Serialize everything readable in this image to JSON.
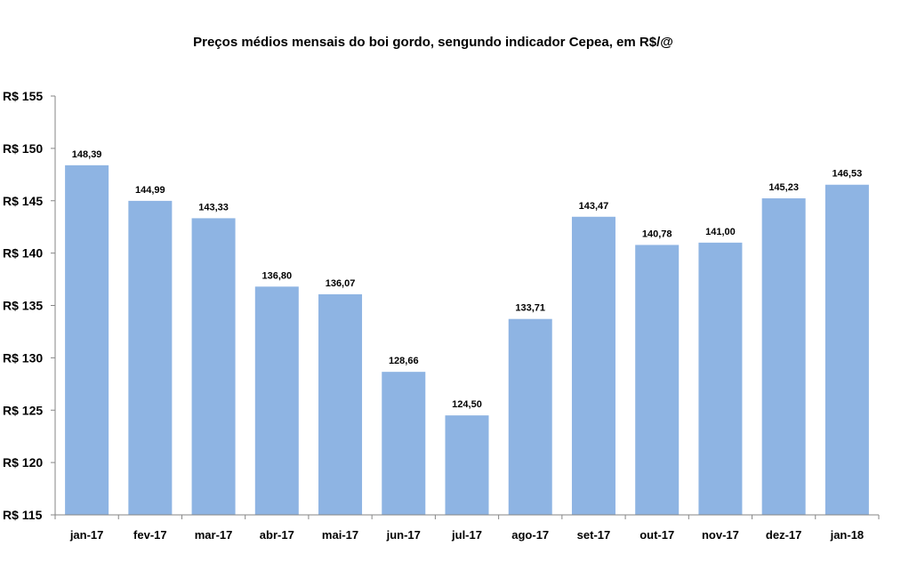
{
  "chart_data": {
    "type": "bar",
    "title": "Preços médios mensais do boi gordo, sengundo indicador Cepea, em R$/@",
    "xlabel": "",
    "ylabel": "",
    "categories": [
      "jan-17",
      "fev-17",
      "mar-17",
      "abr-17",
      "mai-17",
      "jun-17",
      "jul-17",
      "ago-17",
      "set-17",
      "out-17",
      "nov-17",
      "dez-17",
      "jan-18"
    ],
    "values": [
      148.39,
      144.99,
      143.33,
      136.8,
      136.07,
      128.66,
      124.5,
      133.71,
      143.47,
      140.78,
      141.0,
      145.23,
      146.53
    ],
    "data_labels": [
      "148,39",
      "144,99",
      "143,33",
      "136,80",
      "136,07",
      "128,66",
      "124,50",
      "133,71",
      "143,47",
      "140,78",
      "141,00",
      "145,23",
      "146,53"
    ],
    "ylim": [
      115,
      155
    ],
    "yticks": [
      115,
      120,
      125,
      130,
      135,
      140,
      145,
      150,
      155
    ],
    "ytick_labels": [
      "R$ 115",
      "R$ 120",
      "R$ 125",
      "R$ 130",
      "R$ 135",
      "R$ 140",
      "R$ 145",
      "R$ 150",
      "R$ 155"
    ],
    "grid": false,
    "legend": "none",
    "bar_color": "#8EB4E3"
  }
}
